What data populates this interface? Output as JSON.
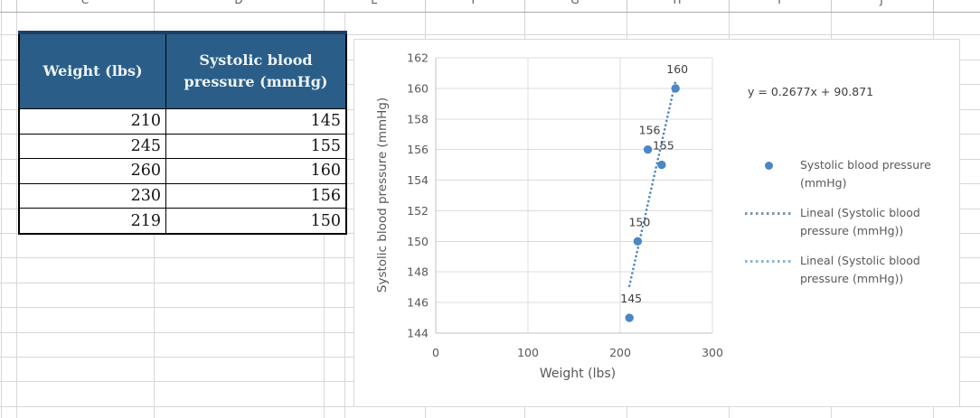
{
  "sheet": {
    "column_letters": [
      "C",
      "D",
      "E",
      "F",
      "G",
      "H",
      "I",
      "J",
      "K"
    ],
    "table": {
      "headers": [
        "Weight (lbs)",
        "Systolic blood pressure (mmHg)"
      ],
      "rows": [
        [
          "210",
          "145"
        ],
        [
          "245",
          "155"
        ],
        [
          "260",
          "160"
        ],
        [
          "230",
          "156"
        ],
        [
          "219",
          "150"
        ]
      ],
      "header_bg": "#2a5e88",
      "header_text_color": "#edf3f8"
    }
  },
  "chart_data": {
    "type": "scatter",
    "title": "",
    "xlabel": "Weight (lbs)",
    "ylabel": "Systolic blood pressure (mmHg)",
    "xlim": [
      0,
      300
    ],
    "ylim": [
      144,
      162
    ],
    "xticks": [
      0,
      100,
      200,
      300
    ],
    "yticks": [
      144,
      146,
      148,
      150,
      152,
      154,
      156,
      158,
      160,
      162
    ],
    "grid": true,
    "points": [
      {
        "x": 210,
        "y": 145,
        "label": "145"
      },
      {
        "x": 245,
        "y": 155,
        "label": "155"
      },
      {
        "x": 260,
        "y": 160,
        "label": "160"
      },
      {
        "x": 230,
        "y": 156,
        "label": "156"
      },
      {
        "x": 219,
        "y": 150,
        "label": "150"
      }
    ],
    "marker_color": "#4c87c3",
    "trendline": {
      "equation_label": "y = 0.2677x + 90.871",
      "slope": 0.2677,
      "intercept": 90.871,
      "x_range": [
        210,
        260
      ],
      "color": "#4e86c2",
      "style": "dotted"
    },
    "legend_position": "right",
    "legend": [
      {
        "icon": "marker",
        "color": "#4c87c3",
        "label": "Systolic blood pressure (mmHg)"
      },
      {
        "icon": "dotted-line",
        "color": "#7b93a9",
        "label": "Lineal (Systolic blood pressure (mmHg))"
      },
      {
        "icon": "dotted-line",
        "color": "#86b2d8",
        "label": "Lineal (Systolic blood pressure (mmHg))"
      }
    ],
    "gridline_color": "#dcdcdc",
    "axis_color": "#c0c0c0",
    "tick_label_color": "#595959",
    "data_label_color": "#3f3f3f"
  }
}
